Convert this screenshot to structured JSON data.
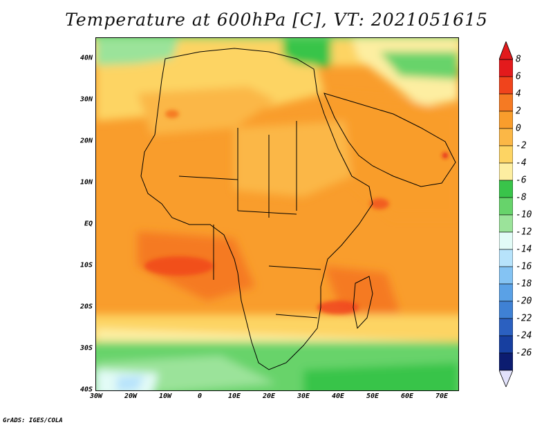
{
  "title": "Temperature at 600hPa [C], VT: 2021051615",
  "footer": "GrADS: IGES/COLA",
  "map": {
    "lat_labels": [
      "40N",
      "30N",
      "20N",
      "10N",
      "EQ",
      "10S",
      "20S",
      "30S",
      "40S"
    ],
    "lon_labels": [
      "30W",
      "20W",
      "10W",
      "0",
      "10E",
      "20E",
      "30E",
      "40E",
      "50E",
      "60E",
      "70E"
    ]
  },
  "colorbar": {
    "labels": [
      "8",
      "6",
      "4",
      "2",
      "0",
      "-2",
      "-4",
      "-6",
      "-8",
      "-10",
      "-12",
      "-14",
      "-16",
      "-18",
      "-20",
      "-22",
      "-24",
      "-26"
    ],
    "colors": [
      "#e31a1c",
      "#f0441c",
      "#f57a23",
      "#f99d2c",
      "#fbb746",
      "#fdd463",
      "#fdeea1",
      "#39c44a",
      "#67d36b",
      "#9be39a",
      "#e2fbf6",
      "#b7e3fb",
      "#84c3f3",
      "#5aa1e6",
      "#3f81d4",
      "#2b60c0",
      "#173fa0",
      "#0c1c70"
    ]
  }
}
